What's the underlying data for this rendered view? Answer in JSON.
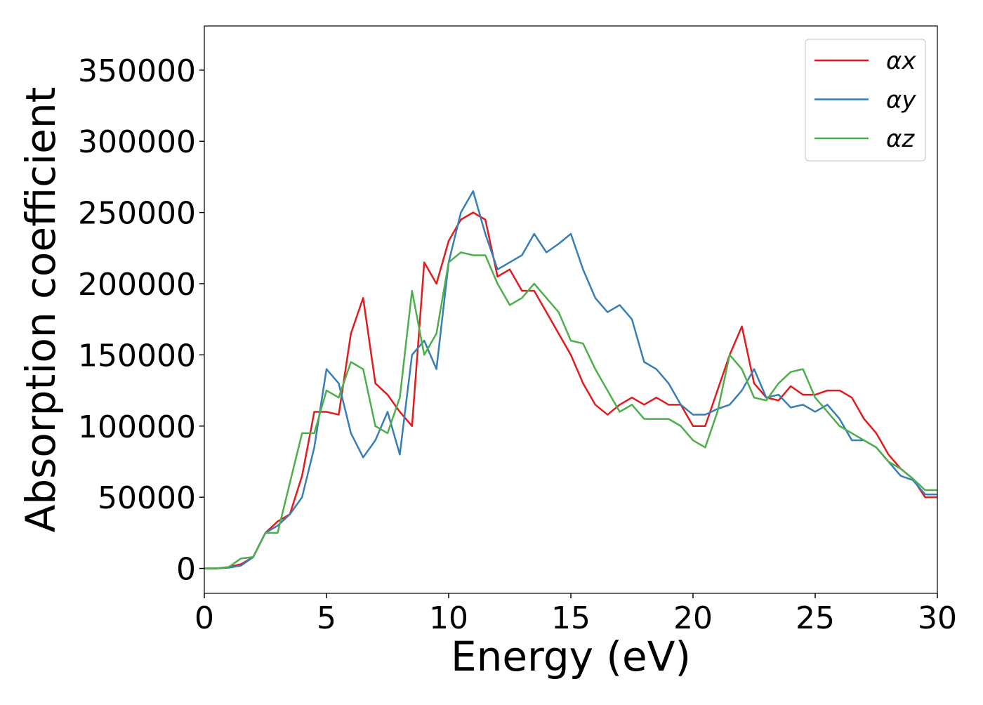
{
  "chart_data": {
    "type": "line",
    "x_label": "Energy (eV)",
    "y_label": "Absorption coefficient",
    "x": [
      0,
      0.5,
      1,
      1.5,
      2,
      2.5,
      3,
      3.5,
      4,
      4.5,
      5,
      5.5,
      6,
      6.5,
      7,
      7.5,
      8,
      8.5,
      9,
      9.5,
      10,
      10.5,
      11,
      11.5,
      12,
      12.5,
      13,
      13.5,
      14,
      14.5,
      15,
      15.5,
      16,
      16.5,
      17,
      17.5,
      18,
      18.5,
      19,
      19.5,
      20,
      20.5,
      21,
      21.5,
      22,
      22.5,
      23,
      23.5,
      24,
      24.5,
      25,
      25.5,
      26,
      26.5,
      27,
      27.5,
      28,
      28.5,
      29,
      29.5,
      30
    ],
    "series": [
      {
        "name": "αx",
        "color": "#e41a1c",
        "values": [
          0,
          0,
          1000,
          3000,
          8000,
          25000,
          33000,
          38000,
          65000,
          110000,
          110000,
          108000,
          165000,
          190000,
          130000,
          122000,
          110000,
          100000,
          215000,
          200000,
          230000,
          245000,
          250000,
          245000,
          205000,
          210000,
          195000,
          195000,
          180000,
          165000,
          150000,
          130000,
          115000,
          108000,
          115000,
          120000,
          115000,
          120000,
          115000,
          115000,
          100000,
          100000,
          125000,
          150000,
          170000,
          130000,
          120000,
          118000,
          128000,
          122000,
          122000,
          125000,
          125000,
          120000,
          105000,
          95000,
          80000,
          70000,
          63000,
          50000,
          50000
        ]
      },
      {
        "name": "αy",
        "color": "#377eb8",
        "values": [
          0,
          0,
          500,
          2000,
          8000,
          25000,
          30000,
          38000,
          50000,
          85000,
          140000,
          130000,
          95000,
          78000,
          90000,
          110000,
          80000,
          150000,
          160000,
          140000,
          215000,
          250000,
          265000,
          235000,
          210000,
          215000,
          220000,
          235000,
          222000,
          228000,
          235000,
          210000,
          190000,
          180000,
          185000,
          175000,
          145000,
          140000,
          130000,
          115000,
          108000,
          108000,
          112000,
          115000,
          125000,
          140000,
          120000,
          122000,
          113000,
          115000,
          110000,
          115000,
          105000,
          90000,
          90000,
          85000,
          75000,
          65000,
          62000,
          52000,
          52000
        ]
      },
      {
        "name": "αz",
        "color": "#4daf4a",
        "values": [
          0,
          0,
          1000,
          7000,
          8000,
          25000,
          25000,
          60000,
          95000,
          95000,
          125000,
          120000,
          145000,
          140000,
          100000,
          95000,
          120000,
          195000,
          150000,
          165000,
          215000,
          222000,
          220000,
          220000,
          200000,
          185000,
          190000,
          200000,
          190000,
          180000,
          160000,
          158000,
          140000,
          125000,
          110000,
          115000,
          105000,
          105000,
          105000,
          100000,
          90000,
          85000,
          110000,
          150000,
          140000,
          120000,
          118000,
          130000,
          138000,
          140000,
          120000,
          110000,
          100000,
          95000,
          90000,
          85000,
          75000,
          70000,
          63000,
          55000,
          55000
        ]
      }
    ],
    "xlim": [
      0,
      30
    ],
    "xticks": [
      0,
      5,
      10,
      15,
      20,
      25,
      30
    ],
    "ylim": [
      -17500,
      381000
    ],
    "yticks": [
      0,
      50000,
      100000,
      150000,
      200000,
      250000,
      300000,
      350000
    ],
    "legend": "upper right"
  }
}
